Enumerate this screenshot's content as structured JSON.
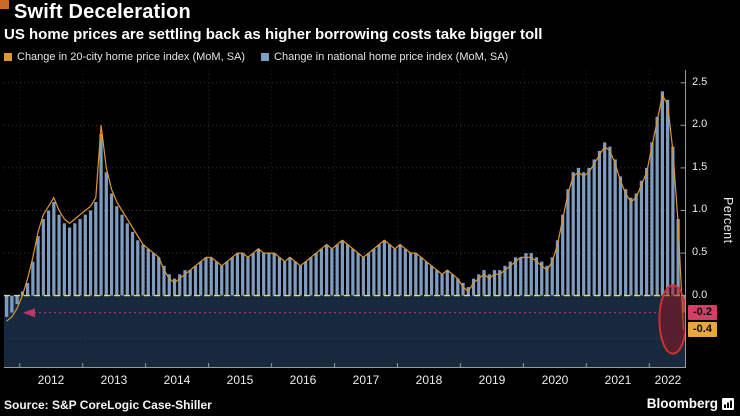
{
  "header": {
    "title": "Swift Deceleration",
    "subtitle": "US home prices are settling back as higher borrowing costs take bigger toll"
  },
  "legend": [
    {
      "label": "Change in 20-city home price index (MoM, SA)",
      "color": "#de9632"
    },
    {
      "label": "Change in national home price index (MoM, SA)",
      "color": "#7e9bc0"
    }
  ],
  "axis": {
    "y_title": "Percent",
    "y_ticks": [
      {
        "label": "2.5",
        "value": 2.5
      },
      {
        "label": "2.0",
        "value": 2.0
      },
      {
        "label": "1.5",
        "value": 1.5
      },
      {
        "label": "1.0",
        "value": 1.0
      },
      {
        "label": "0.5",
        "value": 0.5
      },
      {
        "label": "0.0",
        "value": 0.0
      }
    ],
    "end_labels": [
      {
        "label": "-0.2",
        "value": -0.2,
        "bg": "#d34065",
        "fg": "#0b0b0b"
      },
      {
        "label": "-0.4",
        "value": -0.4,
        "bg": "#e9a63c",
        "fg": "#0b0b0b"
      }
    ],
    "x_labels": [
      "2012",
      "2013",
      "2014",
      "2015",
      "2016",
      "2017",
      "2018",
      "2019",
      "2020",
      "2021",
      "2022"
    ]
  },
  "footer": {
    "source": "Source: S&P CoreLogic Case-Shiller",
    "brand": "Bloomberg"
  },
  "chart_data": {
    "type": "bar",
    "title": "Swift Deceleration",
    "subtitle": "US home prices are settling back as higher borrowing costs take bigger toll",
    "x_start": "2011-10",
    "x_end": "2022-07",
    "frequency": "monthly",
    "ylabel": "Percent",
    "ylim": [
      -0.85,
      2.65
    ],
    "grid": "dotted-horizontal",
    "legend_position": "top-left",
    "series": [
      {
        "name": "Change in 20-city home price index (MoM, SA)",
        "render": "line",
        "color": "#de9632",
        "last_value": -0.4,
        "values": [
          -0.3,
          -0.25,
          -0.15,
          0.0,
          0.2,
          0.45,
          0.75,
          0.95,
          1.05,
          1.15,
          1.0,
          0.9,
          0.85,
          0.9,
          0.95,
          1.0,
          1.05,
          1.15,
          2.0,
          1.5,
          1.25,
          1.1,
          1.0,
          0.9,
          0.8,
          0.7,
          0.6,
          0.55,
          0.5,
          0.45,
          0.3,
          0.2,
          0.15,
          0.2,
          0.25,
          0.3,
          0.35,
          0.4,
          0.45,
          0.45,
          0.4,
          0.35,
          0.4,
          0.45,
          0.5,
          0.5,
          0.45,
          0.5,
          0.55,
          0.5,
          0.5,
          0.5,
          0.45,
          0.4,
          0.45,
          0.4,
          0.35,
          0.4,
          0.45,
          0.5,
          0.55,
          0.6,
          0.55,
          0.6,
          0.65,
          0.6,
          0.55,
          0.5,
          0.45,
          0.5,
          0.55,
          0.6,
          0.65,
          0.6,
          0.55,
          0.6,
          0.55,
          0.5,
          0.5,
          0.45,
          0.4,
          0.35,
          0.3,
          0.25,
          0.3,
          0.25,
          0.2,
          0.1,
          0.05,
          0.15,
          0.2,
          0.25,
          0.2,
          0.25,
          0.25,
          0.3,
          0.35,
          0.4,
          0.45,
          0.45,
          0.45,
          0.4,
          0.35,
          0.3,
          0.4,
          0.6,
          0.9,
          1.2,
          1.4,
          1.45,
          1.4,
          1.45,
          1.55,
          1.65,
          1.75,
          1.7,
          1.55,
          1.35,
          1.2,
          1.1,
          1.15,
          1.3,
          1.45,
          1.75,
          2.05,
          2.35,
          2.25,
          1.7,
          0.85,
          -0.4
        ]
      },
      {
        "name": "Change in national home price index (MoM, SA)",
        "render": "bar",
        "color": "#7e9bc0",
        "last_value": -0.2,
        "values": [
          -0.25,
          -0.2,
          -0.1,
          0.05,
          0.15,
          0.4,
          0.7,
          0.9,
          1.0,
          1.1,
          0.95,
          0.85,
          0.8,
          0.85,
          0.9,
          0.95,
          1.0,
          1.1,
          1.9,
          1.45,
          1.2,
          1.05,
          0.95,
          0.85,
          0.75,
          0.65,
          0.6,
          0.55,
          0.5,
          0.45,
          0.35,
          0.25,
          0.2,
          0.25,
          0.3,
          0.3,
          0.35,
          0.4,
          0.45,
          0.45,
          0.4,
          0.35,
          0.4,
          0.45,
          0.5,
          0.5,
          0.45,
          0.5,
          0.55,
          0.5,
          0.5,
          0.5,
          0.45,
          0.4,
          0.45,
          0.4,
          0.35,
          0.4,
          0.45,
          0.5,
          0.55,
          0.6,
          0.55,
          0.6,
          0.65,
          0.6,
          0.55,
          0.5,
          0.45,
          0.5,
          0.55,
          0.6,
          0.65,
          0.6,
          0.55,
          0.6,
          0.55,
          0.5,
          0.5,
          0.45,
          0.4,
          0.35,
          0.3,
          0.25,
          0.3,
          0.25,
          0.2,
          0.15,
          0.1,
          0.2,
          0.25,
          0.3,
          0.25,
          0.3,
          0.3,
          0.35,
          0.4,
          0.45,
          0.45,
          0.5,
          0.5,
          0.45,
          0.4,
          0.35,
          0.45,
          0.65,
          0.95,
          1.25,
          1.45,
          1.5,
          1.45,
          1.5,
          1.6,
          1.7,
          1.8,
          1.75,
          1.6,
          1.4,
          1.25,
          1.15,
          1.2,
          1.35,
          1.5,
          1.8,
          2.1,
          2.4,
          2.3,
          1.75,
          0.9,
          -0.2
        ]
      }
    ],
    "annotations": {
      "zero_line": {
        "value": 0,
        "style": "dashed-yellow"
      },
      "level_line": {
        "value": -0.2,
        "style": "dotted-magenta-arrow-left"
      },
      "ellipse": {
        "v_top": 0.12,
        "v_bottom": -0.68,
        "note": "latest negative prints circled"
      }
    },
    "colors": {
      "negative_band": "#16293e",
      "zero_line": "#e4e43c",
      "gridline": "#3b3b45",
      "year_gridline": "#24242c",
      "annotation_line": "#bd3569",
      "ellipse_fill": "rgba(152,22,30,0.5)",
      "ellipse_stroke": "#cf2f2f",
      "axis": "#9b9b9b"
    }
  }
}
